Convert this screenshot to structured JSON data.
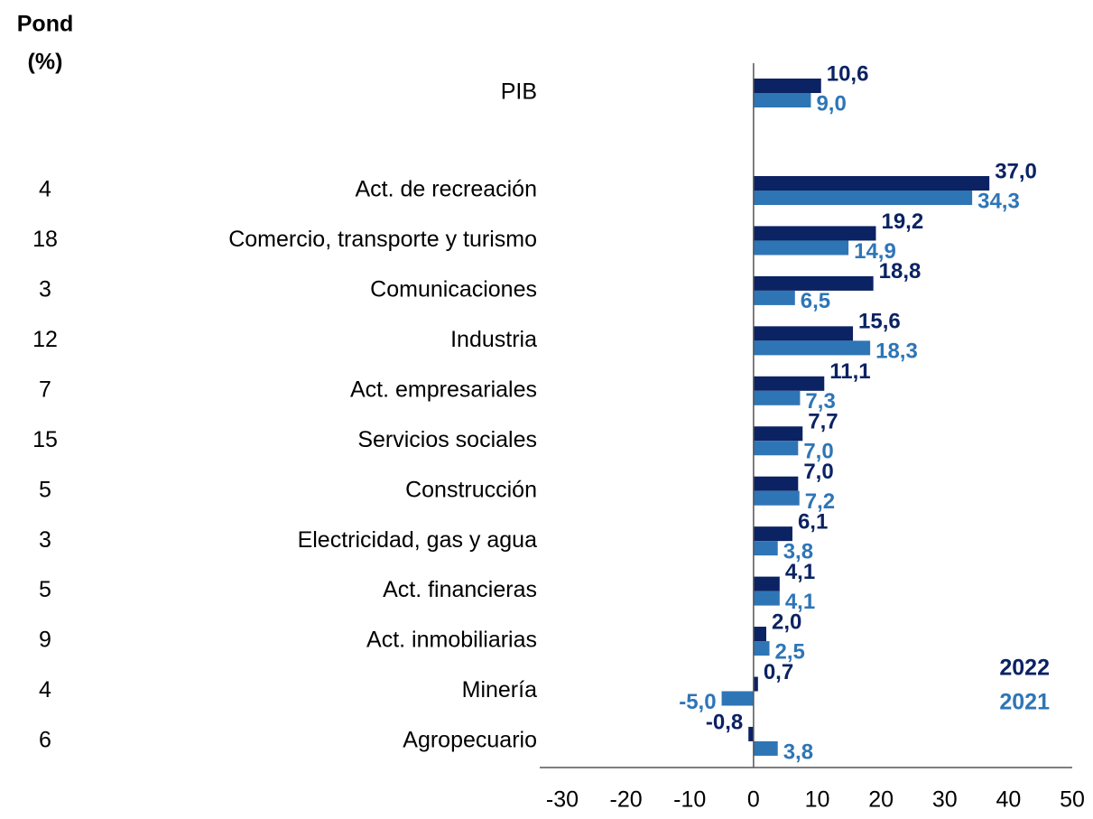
{
  "chart_data": {
    "type": "bar",
    "orientation": "horizontal",
    "weights_title": [
      "Pond",
      "(%)"
    ],
    "categories": [
      "PIB",
      "Act. de recreación",
      "Comercio, transporte y turismo",
      "Comunicaciones",
      "Industria",
      "Act. empresariales",
      "Servicios sociales",
      "Construcción",
      "Electricidad, gas y agua",
      "Act. financieras",
      "Act. inmobiliarias",
      "Minería",
      "Agropecuario"
    ],
    "weights": [
      null,
      4,
      18,
      3,
      12,
      7,
      15,
      5,
      3,
      5,
      9,
      4,
      6
    ],
    "series": [
      {
        "name": "2022",
        "color": "#0b2263",
        "values": [
          10.6,
          37.0,
          19.2,
          18.8,
          15.6,
          11.1,
          7.7,
          7.0,
          6.1,
          4.1,
          2.0,
          0.7,
          -0.8
        ],
        "value_labels": [
          "10,6",
          "37,0",
          "19,2",
          "18,8",
          "15,6",
          "11,1",
          "7,7",
          "7,0",
          "6,1",
          "4,1",
          "2,0",
          "0,7",
          "-0,8"
        ]
      },
      {
        "name": "2021",
        "color": "#2e75b6",
        "values": [
          9.0,
          34.3,
          14.9,
          6.5,
          18.3,
          7.3,
          7.0,
          7.2,
          3.8,
          4.1,
          2.5,
          -5.0,
          3.8
        ],
        "value_labels": [
          "9,0",
          "34,3",
          "14,9",
          "6,5",
          "18,3",
          "7,3",
          "7,0",
          "7,2",
          "3,8",
          "4,1",
          "2,5",
          "-5,0",
          "3,8"
        ]
      }
    ],
    "xlim": [
      -30,
      50
    ],
    "xticks": [
      -30,
      -20,
      -10,
      0,
      10,
      20,
      30,
      40,
      50
    ],
    "legend_position": "lower right"
  }
}
